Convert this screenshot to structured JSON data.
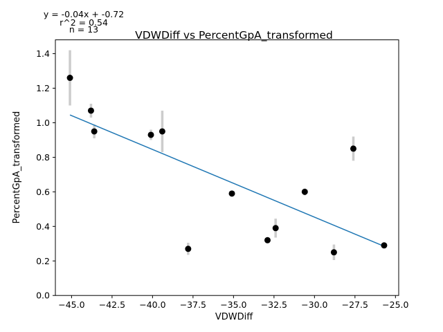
{
  "chart_data": {
    "type": "scatter",
    "title": "VDWDiff vs PercentGpA_transformed",
    "xlabel": "VDWDiff",
    "ylabel": "PercentGpA_transformed",
    "xlim": [
      -46.0,
      -24.8
    ],
    "ylim": [
      0.0,
      1.48
    ],
    "xticks": [
      -45.0,
      -42.5,
      -40.0,
      -37.5,
      -35.0,
      -32.5,
      -30.0,
      -27.5,
      -25.0
    ],
    "xtick_labels": [
      "−45.0",
      "−42.5",
      "−40.0",
      "−37.5",
      "−35.0",
      "−32.5",
      "−30.0",
      "−27.5",
      "−25.0"
    ],
    "yticks": [
      0.0,
      0.2,
      0.4,
      0.6,
      0.8,
      1.0,
      1.2,
      1.4
    ],
    "ytick_labels": [
      "0.0",
      "0.2",
      "0.4",
      "0.6",
      "0.8",
      "1.0",
      "1.2",
      "1.4"
    ],
    "grid": false,
    "points": [
      {
        "x": -45.1,
        "y": 1.26,
        "err": 0.16
      },
      {
        "x": -43.8,
        "y": 1.07,
        "err": 0.04
      },
      {
        "x": -43.6,
        "y": 0.95,
        "err": 0.04
      },
      {
        "x": -40.1,
        "y": 0.93,
        "err": 0.03
      },
      {
        "x": -39.4,
        "y": 0.95,
        "err": 0.12
      },
      {
        "x": -37.8,
        "y": 0.27,
        "err": 0.035
      },
      {
        "x": -35.1,
        "y": 0.59,
        "err": 0.01
      },
      {
        "x": -32.9,
        "y": 0.32,
        "err": 0.015
      },
      {
        "x": -32.4,
        "y": 0.39,
        "err": 0.055
      },
      {
        "x": -30.6,
        "y": 0.6,
        "err": 0.02
      },
      {
        "x": -28.8,
        "y": 0.25,
        "err": 0.045
      },
      {
        "x": -27.6,
        "y": 0.85,
        "err": 0.07
      },
      {
        "x": -25.7,
        "y": 0.29,
        "err": 0.015
      }
    ],
    "fit_line": {
      "x": [
        -45.1,
        -25.7
      ],
      "y": [
        1.045,
        0.285
      ]
    },
    "colors": {
      "points": "#000000",
      "error_bars": "#cccccc",
      "fit_line": "#1f77b4",
      "axes": "#000000"
    },
    "annotations": [
      "y = -0.04x + -0.72",
      "r^2 = 0.54",
      "n = 13"
    ]
  }
}
